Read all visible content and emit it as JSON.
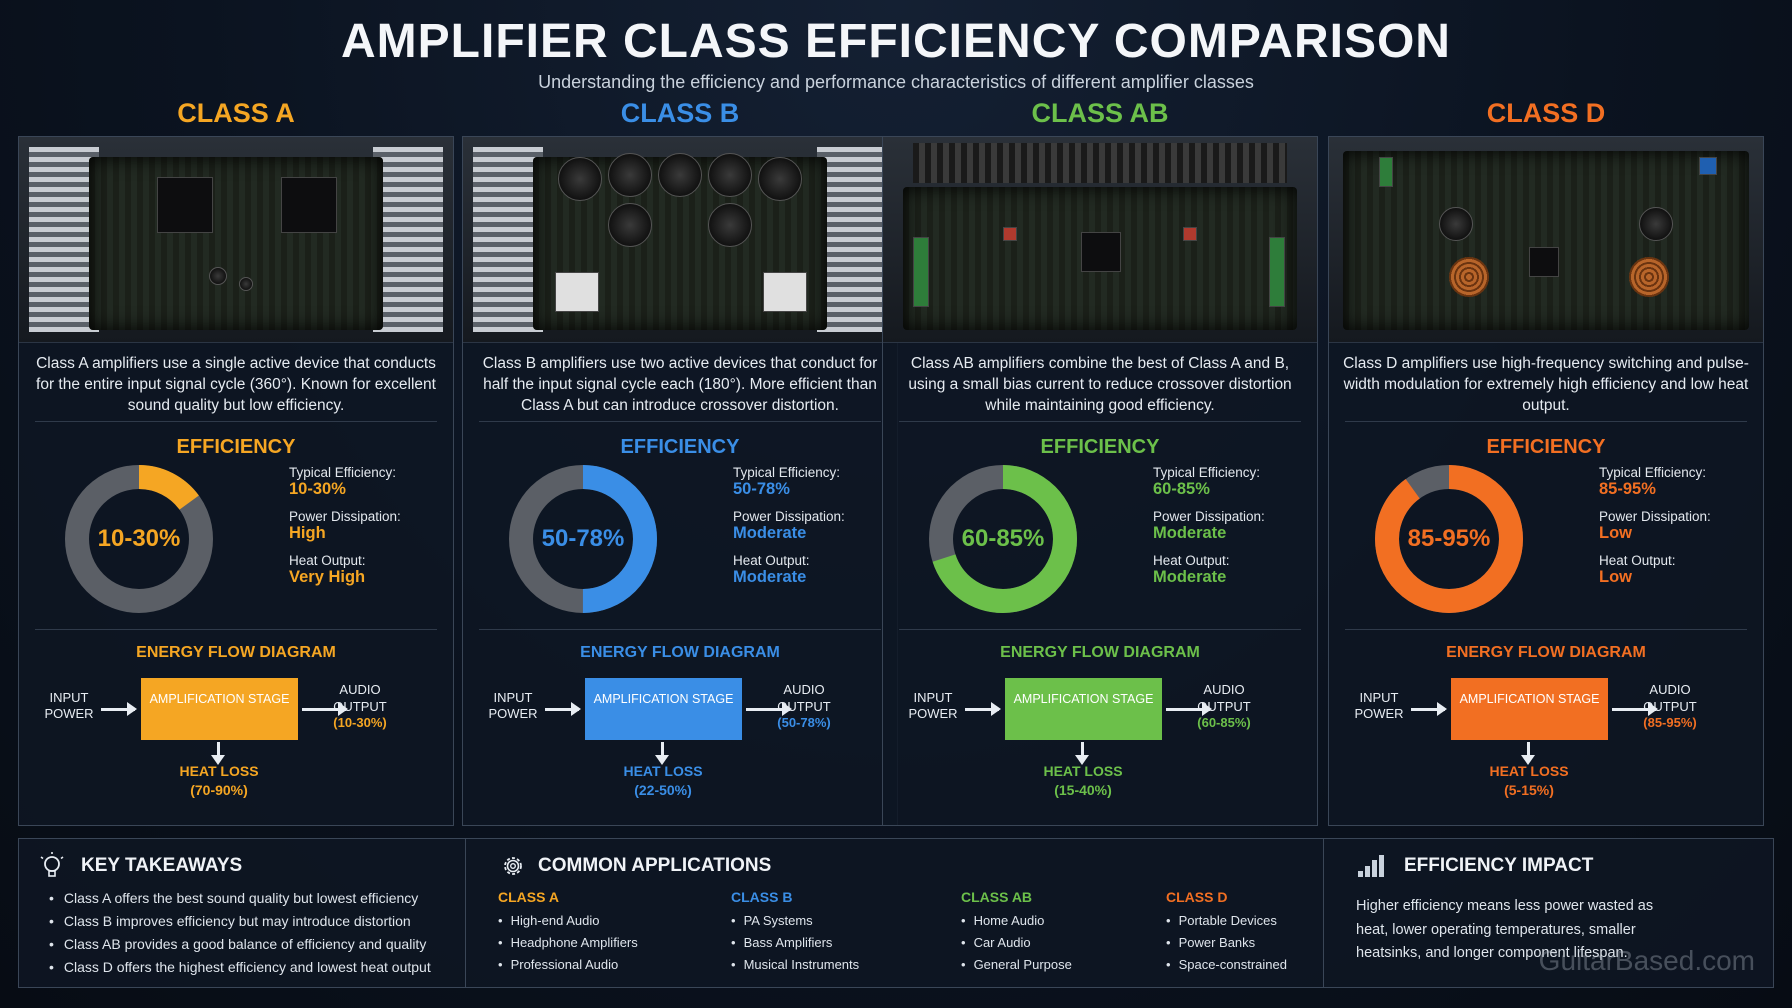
{
  "header": {
    "title": "AMPLIFIER CLASS EFFICIENCY COMPARISON",
    "subtitle": "Understanding the efficiency and performance characteristics of different amplifier classes"
  },
  "colors": {
    "classA": "#f5a623",
    "classB": "#3a8ee6",
    "classAB": "#6cc04a",
    "classD": "#f26f22",
    "ring_bg": "#5b5f66"
  },
  "classes": [
    {
      "title": "CLASS A",
      "description": "Class A amplifiers use a single active device that conducts for the entire input signal cycle (360°). Known for excellent sound quality but low efficiency.",
      "efficiency_title": "EFFICIENCY",
      "donut_label": "10-30%",
      "donut_fill": 0.15,
      "typical_efficiency_label": "Typical Efficiency:",
      "typical_efficiency": "10-30%",
      "power_dissipation_label": "Power Dissipation:",
      "power_dissipation": "High",
      "heat_output_label": "Heat Output:",
      "heat_output": "Very High",
      "flow_title": "ENERGY FLOW DIAGRAM",
      "flow_input": "INPUT POWER",
      "flow_stage": "AMPLIFICATION STAGE",
      "flow_output": "AUDIO OUTPUT",
      "flow_output_pct": "(10-30%)",
      "flow_heat": "HEAT LOSS",
      "flow_heat_pct": "(70-90%)"
    },
    {
      "title": "CLASS B",
      "description": "Class B amplifiers use two active devices that conduct for half the input signal cycle each (180°). More efficient than Class A but can introduce crossover distortion.",
      "efficiency_title": "EFFICIENCY",
      "donut_label": "50-78%",
      "donut_fill": 0.5,
      "typical_efficiency_label": "Typical Efficiency:",
      "typical_efficiency": "50-78%",
      "power_dissipation_label": "Power Dissipation:",
      "power_dissipation": "Moderate",
      "heat_output_label": "Heat Output:",
      "heat_output": "Moderate",
      "flow_title": "ENERGY FLOW DIAGRAM",
      "flow_input": "INPUT POWER",
      "flow_stage": "AMPLIFICATION STAGE",
      "flow_output": "AUDIO OUTPUT",
      "flow_output_pct": "(50-78%)",
      "flow_heat": "HEAT LOSS",
      "flow_heat_pct": "(22-50%)"
    },
    {
      "title": "CLASS AB",
      "description": "Class AB amplifiers combine the best of Class A and B, using a small bias current to reduce crossover distortion while maintaining good efficiency.",
      "efficiency_title": "EFFICIENCY",
      "donut_label": "60-85%",
      "donut_fill": 0.7,
      "typical_efficiency_label": "Typical Efficiency:",
      "typical_efficiency": "60-85%",
      "power_dissipation_label": "Power Dissipation:",
      "power_dissipation": "Moderate",
      "heat_output_label": "Heat Output:",
      "heat_output": "Moderate",
      "flow_title": "ENERGY FLOW DIAGRAM",
      "flow_input": "INPUT POWER",
      "flow_stage": "AMPLIFICATION STAGE",
      "flow_output": "AUDIO OUTPUT",
      "flow_output_pct": "(60-85%)",
      "flow_heat": "HEAT LOSS",
      "flow_heat_pct": "(15-40%)"
    },
    {
      "title": "CLASS D",
      "description": "Class D amplifiers use high-frequency switching and pulse-width modulation for extremely high efficiency and low heat output.",
      "efficiency_title": "EFFICIENCY",
      "donut_label": "85-95%",
      "donut_fill": 0.9,
      "typical_efficiency_label": "Typical Efficiency:",
      "typical_efficiency": "85-95%",
      "power_dissipation_label": "Power Dissipation:",
      "power_dissipation": "Low",
      "heat_output_label": "Heat Output:",
      "heat_output": "Low",
      "flow_title": "ENERGY FLOW DIAGRAM",
      "flow_input": "INPUT POWER",
      "flow_stage": "AMPLIFICATION STAGE",
      "flow_output": "AUDIO OUTPUT",
      "flow_output_pct": "(85-95%)",
      "flow_heat": "HEAT LOSS",
      "flow_heat_pct": "(5-15%)"
    }
  ],
  "takeaways": {
    "title": "KEY TAKEAWAYS",
    "icon": "lightbulb-icon",
    "items": [
      "Class A offers the best sound quality but lowest efficiency",
      "Class B improves efficiency but may introduce distortion",
      "Class AB provides a good balance of efficiency and quality",
      "Class D offers the highest efficiency and lowest heat output"
    ]
  },
  "applications": {
    "title": "COMMON APPLICATIONS",
    "icon": "gear-icon",
    "groups": [
      {
        "heading": "CLASS A",
        "items": [
          "High-end Audio",
          "Headphone Amplifiers",
          "Professional Audio"
        ]
      },
      {
        "heading": "CLASS B",
        "items": [
          "PA Systems",
          "Bass Amplifiers",
          "Musical Instruments"
        ]
      },
      {
        "heading": "CLASS AB",
        "items": [
          "Home Audio",
          "Car Audio",
          "General Purpose"
        ]
      },
      {
        "heading": "CLASS D",
        "items": [
          "Portable Devices",
          "Power Banks",
          "Space-constrained"
        ]
      }
    ]
  },
  "impact": {
    "title": "EFFICIENCY IMPACT",
    "icon": "bar-chart-icon",
    "text": "Higher efficiency means less power wasted as heat, lower operating temperatures, smaller heatsinks, and longer component lifespan."
  },
  "watermark": "GuitarBased.com"
}
